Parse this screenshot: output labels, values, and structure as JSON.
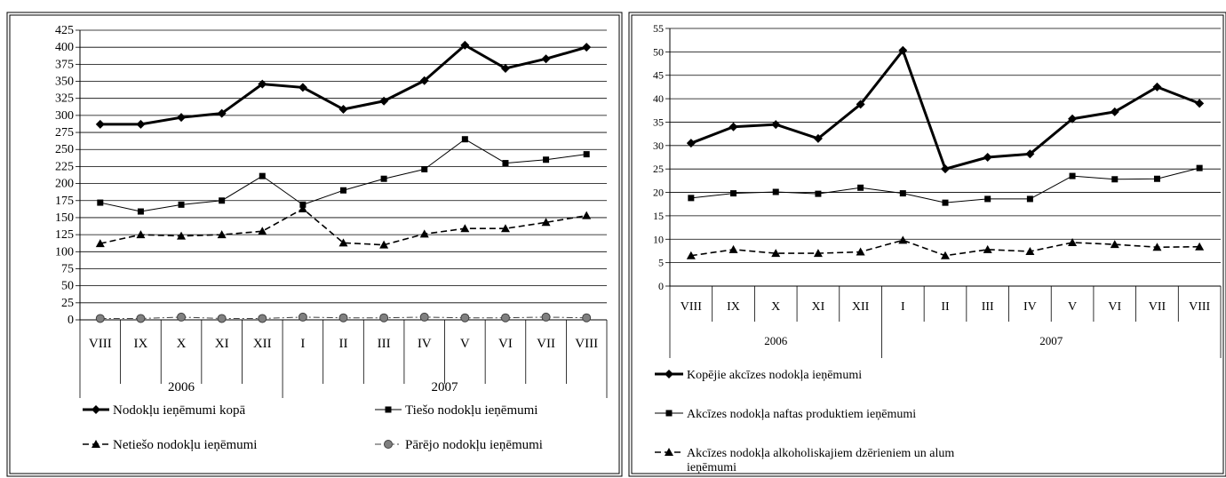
{
  "chart_data": [
    {
      "type": "line",
      "categories": [
        "VIII",
        "IX",
        "X",
        "XI",
        "XII",
        "I",
        "II",
        "III",
        "IV",
        "V",
        "VI",
        "VII",
        "VIII"
      ],
      "year_groups": [
        {
          "label": "2006",
          "count": 5
        },
        {
          "label": "2007",
          "count": 8
        }
      ],
      "y_ticks": [
        0,
        25,
        50,
        75,
        100,
        125,
        150,
        175,
        200,
        225,
        250,
        275,
        300,
        325,
        350,
        375,
        400,
        425
      ],
      "ylim": [
        0,
        425
      ],
      "grid": true,
      "legend_position": "bottom",
      "series": [
        {
          "name": "Nodokļu ieņēmumi kopā",
          "marker": "diamond",
          "dash": "solid",
          "weight": "bold",
          "values": [
            287,
            287,
            297,
            303,
            346,
            341,
            309,
            321,
            351,
            403,
            369,
            383,
            400
          ]
        },
        {
          "name": "Tiešo nodokļu ieņēmumi",
          "marker": "square",
          "dash": "solid",
          "weight": "thin",
          "values": [
            172,
            159,
            169,
            175,
            211,
            169,
            190,
            207,
            221,
            265,
            230,
            235,
            243
          ]
        },
        {
          "name": "Netiešo nodokļu ieņēmumi",
          "marker": "triangle",
          "dash": "dashed",
          "weight": "normal",
          "values": [
            112,
            125,
            123,
            125,
            130,
            163,
            113,
            110,
            126,
            134,
            134,
            143,
            153
          ]
        },
        {
          "name": "Pārējo nodokļu ieņēmumi",
          "marker": "circle",
          "dash": "dashdot",
          "weight": "thin",
          "values": [
            2,
            2,
            4,
            2,
            2,
            4,
            3,
            3,
            4,
            3,
            3,
            4,
            3
          ]
        }
      ]
    },
    {
      "type": "line",
      "categories": [
        "VIII",
        "IX",
        "X",
        "XI",
        "XII",
        "I",
        "II",
        "III",
        "IV",
        "V",
        "VI",
        "VII",
        "VIII"
      ],
      "year_groups": [
        {
          "label": "2006",
          "count": 5
        },
        {
          "label": "2007",
          "count": 8
        }
      ],
      "y_ticks": [
        0,
        5,
        10,
        15,
        20,
        25,
        30,
        35,
        40,
        45,
        50,
        55
      ],
      "ylim": [
        0,
        55
      ],
      "grid": true,
      "legend_position": "bottom",
      "series": [
        {
          "name": "Kopējie akcīzes nodokļa ieņēmumi",
          "marker": "diamond",
          "dash": "solid",
          "weight": "bold",
          "values": [
            30.5,
            34,
            34.5,
            31.5,
            38.8,
            50.3,
            25,
            27.5,
            28.2,
            35.7,
            37.2,
            42.5,
            39
          ]
        },
        {
          "name": "Akcīzes nodokļa naftas produktiem ieņēmumi",
          "marker": "square",
          "dash": "solid",
          "weight": "thin",
          "values": [
            18.8,
            19.8,
            20.1,
            19.7,
            21,
            19.8,
            17.8,
            18.6,
            18.6,
            23.5,
            22.8,
            22.9,
            25.2
          ]
        },
        {
          "name": "Akcīzes nodokļa alkoholiskajiem dzērieniem un alum ieņēmumi",
          "marker": "triangle",
          "dash": "dashed",
          "weight": "normal",
          "values": [
            6.5,
            7.8,
            7,
            7,
            7.3,
            9.8,
            6.5,
            7.8,
            7.4,
            9.3,
            8.9,
            8.3,
            8.4
          ]
        }
      ]
    }
  ]
}
